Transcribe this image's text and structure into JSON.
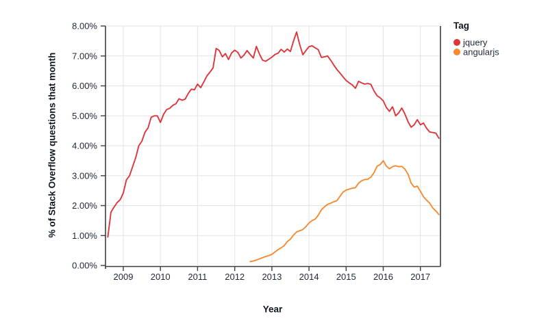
{
  "chart_data": {
    "type": "line",
    "title": "",
    "xlabel": "Year",
    "ylabel": "% of Stack Overflow questions that month",
    "legend_title": "Tag",
    "legend_position": "top-right-outside",
    "grid": true,
    "xlim": [
      2008.52,
      2017.54
    ],
    "ylim": [
      0,
      8
    ],
    "colors": {
      "grid": "#e3e3e3",
      "axis": "#3d3d3d",
      "tick_text": "#212a3a"
    },
    "x_ticks": [
      {
        "label": "2009",
        "value": 2009
      },
      {
        "label": "2010",
        "value": 2010
      },
      {
        "label": "2011",
        "value": 2011
      },
      {
        "label": "2012",
        "value": 2012
      },
      {
        "label": "2013",
        "value": 2013
      },
      {
        "label": "2014",
        "value": 2014
      },
      {
        "label": "2015",
        "value": 2015
      },
      {
        "label": "2016",
        "value": 2016
      },
      {
        "label": "2017",
        "value": 2017
      }
    ],
    "y_ticks": [
      {
        "label": "0.00%",
        "value": 0
      },
      {
        "label": "1.00%",
        "value": 1
      },
      {
        "label": "2.00%",
        "value": 2
      },
      {
        "label": "3.00%",
        "value": 3
      },
      {
        "label": "4.00%",
        "value": 4
      },
      {
        "label": "5.00%",
        "value": 5
      },
      {
        "label": "6.00%",
        "value": 6
      },
      {
        "label": "7.00%",
        "value": 7
      },
      {
        "label": "8.00%",
        "value": 8
      }
    ],
    "series": [
      {
        "name": "jquery",
        "color": "#dd3539",
        "start": "2008-08",
        "interval": "monthly",
        "values": [
          0.95,
          1.78,
          1.95,
          2.1,
          2.2,
          2.42,
          2.86,
          3.0,
          3.3,
          3.6,
          4.0,
          4.15,
          4.45,
          4.6,
          4.95,
          5.0,
          5.0,
          4.78,
          5.05,
          5.21,
          5.25,
          5.35,
          5.4,
          5.57,
          5.52,
          5.56,
          5.75,
          5.89,
          5.87,
          6.06,
          5.94,
          6.13,
          6.33,
          6.46,
          6.6,
          7.25,
          7.18,
          6.97,
          7.08,
          6.88,
          7.1,
          7.19,
          7.12,
          6.93,
          7.03,
          7.18,
          7.05,
          6.93,
          7.32,
          7.06,
          6.86,
          6.82,
          6.89,
          6.96,
          7.05,
          7.09,
          7.22,
          7.13,
          7.23,
          7.15,
          7.5,
          7.8,
          7.38,
          7.04,
          7.18,
          7.31,
          7.34,
          7.27,
          7.21,
          6.95,
          6.97,
          7.0,
          6.86,
          6.7,
          6.55,
          6.43,
          6.3,
          6.18,
          6.1,
          6.03,
          5.92,
          6.15,
          6.1,
          6.06,
          6.08,
          6.05,
          5.83,
          5.67,
          5.6,
          5.5,
          5.28,
          5.15,
          5.3,
          5.0,
          5.1,
          5.26,
          5.06,
          4.8,
          4.62,
          4.7,
          4.87,
          4.7,
          4.76,
          4.58,
          4.46,
          4.44,
          4.42,
          4.25
        ]
      },
      {
        "name": "angularjs",
        "color": "#f58b31",
        "start": "2012-06",
        "interval": "monthly",
        "values": [
          0.13,
          0.15,
          0.18,
          0.22,
          0.26,
          0.3,
          0.33,
          0.37,
          0.45,
          0.53,
          0.59,
          0.66,
          0.8,
          0.88,
          1.02,
          1.12,
          1.16,
          1.2,
          1.3,
          1.42,
          1.5,
          1.55,
          1.68,
          1.86,
          1.96,
          2.04,
          2.08,
          2.13,
          2.16,
          2.31,
          2.45,
          2.52,
          2.55,
          2.58,
          2.6,
          2.75,
          2.83,
          2.87,
          2.88,
          2.95,
          3.1,
          3.32,
          3.37,
          3.5,
          3.32,
          3.23,
          3.3,
          3.33,
          3.3,
          3.31,
          3.22,
          3.05,
          2.75,
          2.62,
          2.65,
          2.48,
          2.3,
          2.18,
          2.08,
          1.92,
          1.82,
          1.7
        ]
      }
    ]
  }
}
